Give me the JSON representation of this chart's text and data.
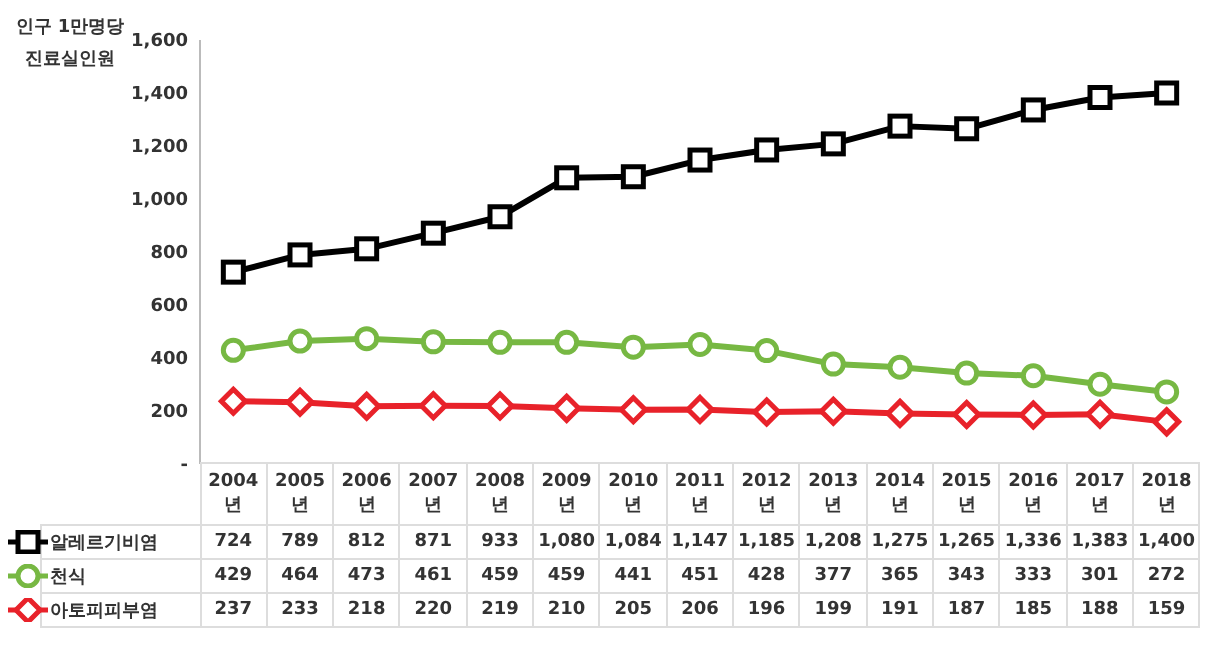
{
  "chart_data": {
    "type": "line",
    "title": "인구 1만명당 진료실인원",
    "categories": [
      "2004년",
      "2005년",
      "2006년",
      "2007년",
      "2008년",
      "2009년",
      "2010년",
      "2011년",
      "2012년",
      "2013년",
      "2014년",
      "2015년",
      "2016년",
      "2017년",
      "2018년"
    ],
    "series": [
      {
        "name": "알레르기비염",
        "color": "#000000",
        "marker": "square",
        "values": [
          724,
          789,
          812,
          871,
          933,
          1080,
          1084,
          1147,
          1185,
          1208,
          1275,
          1265,
          1336,
          1383,
          1400
        ],
        "value_labels": [
          "724",
          "789",
          "812",
          "871",
          "933",
          "1,080",
          "1,084",
          "1,147",
          "1,185",
          "1,208",
          "1,275",
          "1,265",
          "1,336",
          "1,383",
          "1,400"
        ]
      },
      {
        "name": "천식",
        "color": "#77b843",
        "marker": "circle",
        "values": [
          429,
          464,
          473,
          461,
          459,
          459,
          441,
          451,
          428,
          377,
          365,
          343,
          333,
          301,
          272
        ],
        "value_labels": [
          "429",
          "464",
          "473",
          "461",
          "459",
          "459",
          "441",
          "451",
          "428",
          "377",
          "365",
          "343",
          "333",
          "301",
          "272"
        ]
      },
      {
        "name": "아토피피부염",
        "color": "#e8222a",
        "marker": "diamond",
        "values": [
          237,
          233,
          218,
          220,
          219,
          210,
          205,
          206,
          196,
          199,
          191,
          187,
          185,
          188,
          159
        ],
        "value_labels": [
          "237",
          "233",
          "218",
          "220",
          "219",
          "210",
          "205",
          "206",
          "196",
          "199",
          "191",
          "187",
          "185",
          "188",
          "159"
        ]
      }
    ],
    "ylim": [
      0,
      1600
    ],
    "yticks": [
      {
        "value": 0,
        "label": "-"
      },
      {
        "value": 200,
        "label": "200"
      },
      {
        "value": 400,
        "label": "400"
      },
      {
        "value": 600,
        "label": "600"
      },
      {
        "value": 800,
        "label": "800"
      },
      {
        "value": 1000,
        "label": "1,000"
      },
      {
        "value": 1200,
        "label": "1,200"
      },
      {
        "value": 1400,
        "label": "1,400"
      },
      {
        "value": 1600,
        "label": "1,600"
      }
    ],
    "grid": false,
    "legend": "bottom",
    "line_style": "solid"
  }
}
